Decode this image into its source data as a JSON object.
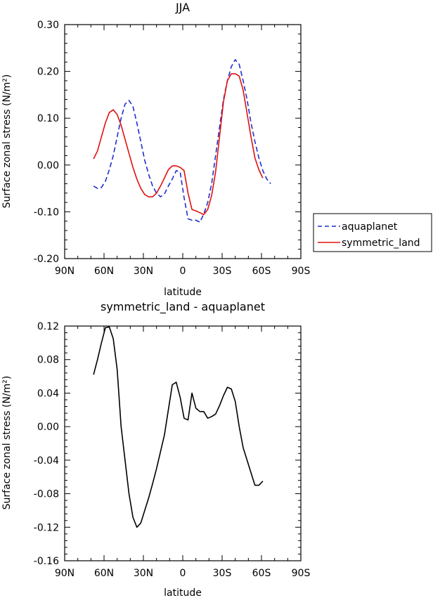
{
  "chart_data": [
    {
      "type": "line",
      "title": "JJA",
      "xlabel": "latitude",
      "ylabel": "Surface zonal stress (N/m²)",
      "xlim": [
        -90,
        90
      ],
      "ylim": [
        -0.2,
        0.3
      ],
      "x_ticks": [
        -90,
        -60,
        -30,
        0,
        30,
        60,
        90
      ],
      "x_tick_labels": [
        "90N",
        "60N",
        "30N",
        "0",
        "30S",
        "60S",
        "90S"
      ],
      "y_ticks": [
        -0.2,
        -0.1,
        0.0,
        0.1,
        0.2,
        0.3
      ],
      "y_tick_labels": [
        "-0.20",
        "-0.10",
        "0.00",
        "0.10",
        "0.20",
        "0.30"
      ],
      "legend": {
        "placement": "right",
        "entries": [
          {
            "label": "aquaplanet",
            "color": "#1f2fd0",
            "style": "dashed"
          },
          {
            "label": "symmetric_land",
            "color": "#e01010",
            "style": "solid"
          }
        ]
      },
      "series": [
        {
          "name": "aquaplanet",
          "color": "#1f2fd0",
          "style": "dashed",
          "x": [
            -68,
            -65,
            -62,
            -59,
            -56,
            -53,
            -50,
            -47,
            -44,
            -41,
            -38,
            -35,
            -32,
            -29,
            -26,
            -23,
            -20,
            -17,
            -14,
            -11,
            -8,
            -5,
            -2,
            1,
            4,
            7,
            10,
            13,
            16,
            19,
            22,
            25,
            28,
            31,
            34,
            37,
            40,
            43,
            46,
            49,
            52,
            55,
            58,
            61,
            64,
            67
          ],
          "y": [
            -0.045,
            -0.05,
            -0.048,
            -0.035,
            -0.01,
            0.02,
            0.06,
            0.1,
            0.13,
            0.138,
            0.125,
            0.09,
            0.05,
            0.01,
            -0.02,
            -0.045,
            -0.06,
            -0.068,
            -0.062,
            -0.045,
            -0.03,
            -0.012,
            -0.015,
            -0.07,
            -0.115,
            -0.118,
            -0.118,
            -0.122,
            -0.105,
            -0.08,
            -0.04,
            0.02,
            0.08,
            0.14,
            0.18,
            0.21,
            0.225,
            0.215,
            0.18,
            0.14,
            0.09,
            0.05,
            0.015,
            -0.012,
            -0.03,
            -0.04
          ]
        },
        {
          "name": "symmetric_land",
          "color": "#e01010",
          "style": "solid",
          "x": [
            -68,
            -65,
            -62,
            -59,
            -56,
            -53,
            -50,
            -47,
            -44,
            -41,
            -38,
            -35,
            -32,
            -29,
            -26,
            -23,
            -20,
            -17,
            -14,
            -11,
            -8,
            -5,
            -2,
            1,
            4,
            7,
            10,
            13,
            16,
            19,
            22,
            25,
            28,
            31,
            34,
            37,
            40,
            43,
            46,
            49,
            52,
            55,
            58,
            61
          ],
          "y": [
            0.013,
            0.03,
            0.06,
            0.09,
            0.112,
            0.118,
            0.108,
            0.085,
            0.055,
            0.025,
            -0.005,
            -0.03,
            -0.05,
            -0.063,
            -0.068,
            -0.068,
            -0.06,
            -0.045,
            -0.028,
            -0.01,
            -0.002,
            -0.002,
            -0.005,
            -0.012,
            -0.06,
            -0.095,
            -0.098,
            -0.102,
            -0.106,
            -0.095,
            -0.065,
            -0.015,
            0.06,
            0.135,
            0.18,
            0.195,
            0.195,
            0.19,
            0.16,
            0.11,
            0.06,
            0.015,
            -0.01,
            -0.028
          ]
        }
      ]
    },
    {
      "type": "line",
      "title": "symmetric_land - aquaplanet",
      "xlabel": "latitude",
      "ylabel": "Surface zonal stress (N/m²)",
      "xlim": [
        -90,
        90
      ],
      "ylim": [
        -0.16,
        0.12
      ],
      "x_ticks": [
        -90,
        -60,
        -30,
        0,
        30,
        60,
        90
      ],
      "x_tick_labels": [
        "90N",
        "60N",
        "30N",
        "0",
        "30S",
        "60S",
        "90S"
      ],
      "y_ticks": [
        -0.16,
        -0.12,
        -0.08,
        -0.04,
        0.0,
        0.04,
        0.08,
        0.12
      ],
      "y_tick_labels": [
        "-0.16",
        "-0.12",
        "-0.08",
        "-0.04",
        "0.00",
        "0.04",
        "0.08",
        "0.12"
      ],
      "series": [
        {
          "color": "#000000",
          "style": "solid",
          "x": [
            -68,
            -65,
            -62,
            -59,
            -56,
            -53,
            -50,
            -47,
            -44,
            -41,
            -38,
            -35,
            -32,
            -29,
            -26,
            -23,
            -20,
            -17,
            -14,
            -11,
            -8,
            -5,
            -2,
            1,
            4,
            7,
            10,
            13,
            16,
            19,
            22,
            25,
            28,
            31,
            34,
            37,
            40,
            43,
            46,
            49,
            52,
            55,
            58,
            61
          ],
          "y": [
            0.062,
            0.08,
            0.1,
            0.118,
            0.119,
            0.105,
            0.068,
            0.0,
            -0.04,
            -0.08,
            -0.108,
            -0.12,
            -0.115,
            -0.1,
            -0.085,
            -0.068,
            -0.05,
            -0.03,
            -0.01,
            0.02,
            0.05,
            0.053,
            0.035,
            0.01,
            0.008,
            0.04,
            0.022,
            0.018,
            0.018,
            0.01,
            0.012,
            0.015,
            0.025,
            0.037,
            0.047,
            0.045,
            0.03,
            0.0,
            -0.025,
            -0.04,
            -0.055,
            -0.07,
            -0.07,
            -0.065
          ]
        }
      ]
    }
  ]
}
